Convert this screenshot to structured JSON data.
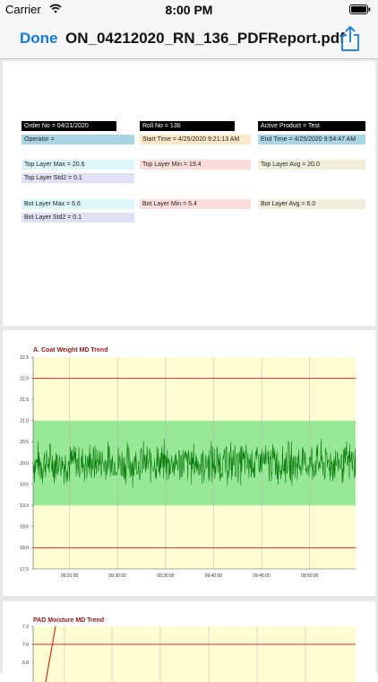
{
  "status_bar": {
    "carrier": "Carrier",
    "time": "8:00 PM"
  },
  "nav": {
    "done_label": "Done",
    "title": "ON_04212020_RN_136_PDFReport.pdf"
  },
  "report": {
    "order_no": "Order No = 04/21/2020",
    "roll_no": "Roll No = 136",
    "active_product": "Active Product = Test",
    "operator": "Operator =",
    "start_time": "Start Time = 4/25/2020 9:21:13 AM",
    "end_time": "End Time = 4/25/2020 9:54:47 AM",
    "top_layer_max": "Top Layer Max = 20.6",
    "top_layer_min": "Top Layer Min = 19.4",
    "top_layer_avg": "Top Layer Avg = 20.0",
    "top_layer_std2": "Top Layer Std2 = 0.1",
    "bot_layer_max": "Bot Layer Max = 6.6",
    "bot_layer_min": "Bot Layer Min = 5.4",
    "bot_layer_avg": "Bot Layer Avg = 6.0",
    "bot_layer_std2": "Bot Layer Std2 = 0.1"
  },
  "chart_data": [
    {
      "type": "line",
      "title": "A. Coat Weight MD Trend",
      "xlabel": "",
      "ylabel": "",
      "ylim": [
        17.5,
        22.5
      ],
      "y_ticks": [
        "22.5",
        "22.0",
        "21.5",
        "21.0",
        "20.5",
        "20.0",
        "19.5",
        "19.0",
        "18.5",
        "18.0",
        "17.5"
      ],
      "x_ticks": [
        "09:25:00",
        "09:30:00",
        "09:35:00",
        "09:40:00",
        "09:45:00",
        "09:50:00"
      ],
      "x_range": [
        "09:21:13",
        "09:54:47"
      ],
      "limit_lines": [
        22.0,
        18.0
      ],
      "control_band": [
        19.0,
        21.0
      ],
      "target": 20.0,
      "series": [
        {
          "values_summary": {
            "center": 20.0,
            "min": 19.4,
            "max": 20.6
          }
        }
      ],
      "colors": {
        "series": "#0a7a0a",
        "band": "#98e898",
        "background": "#fdfdd2",
        "limits": "#d32f2f"
      },
      "grid": true
    },
    {
      "type": "line",
      "title": "PAD Moisture MD Trend",
      "xlabel": "",
      "ylabel": "",
      "y_ticks": [
        "7.2",
        "7.0",
        "6.8"
      ],
      "limit_lines": [
        7.0
      ],
      "colors": {
        "series": "#d32f2f",
        "background": "#fdfdd2",
        "limits": "#d32f2f"
      },
      "grid": true
    }
  ]
}
